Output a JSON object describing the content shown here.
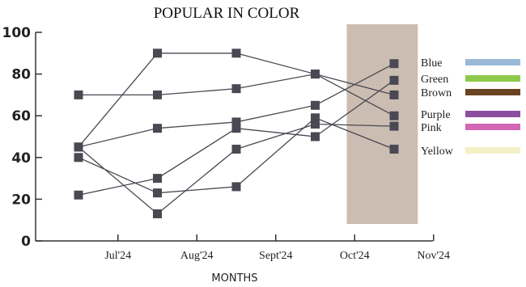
{
  "chart_data": {
    "type": "line",
    "title": "POPULAR IN COLOR",
    "xlabel": "MONTHS",
    "ylabel": "",
    "ylim": [
      0,
      100
    ],
    "yticks": [
      0,
      20,
      40,
      60,
      80,
      100
    ],
    "x_tick_labels": [
      "Jul'24",
      "Aug'24",
      "Sept'24",
      "Oct'24",
      "Nov'24"
    ],
    "point_positions": [
      0,
      1,
      2,
      3,
      4
    ],
    "shaded_region": {
      "from_point": 3.4,
      "to_point": 4.3,
      "color": "#cbbdb1"
    },
    "marker_color": "#4a4852",
    "line_color": "#4a4852",
    "legend_placement": "right",
    "series": [
      {
        "name": "Blue",
        "color": "#9ab9d6",
        "values": [
          45,
          90,
          90,
          80,
          70
        ]
      },
      {
        "name": "Green",
        "color": "#8dc94a",
        "values": [
          45,
          54,
          57,
          65,
          85
        ]
      },
      {
        "name": "Brown",
        "color": "#6a4420",
        "values": [
          70,
          70,
          73,
          80,
          60
        ]
      },
      {
        "name": "Purple",
        "color": "#8c4fa0",
        "values": [
          40,
          23,
          26,
          59,
          44
        ]
      },
      {
        "name": "Pink",
        "color": "#d466b6",
        "values": [
          22,
          30,
          54,
          50,
          77
        ]
      },
      {
        "name": "Yellow",
        "color": "#f4f1c6",
        "values": [
          45,
          13,
          44,
          56,
          55
        ]
      }
    ]
  }
}
